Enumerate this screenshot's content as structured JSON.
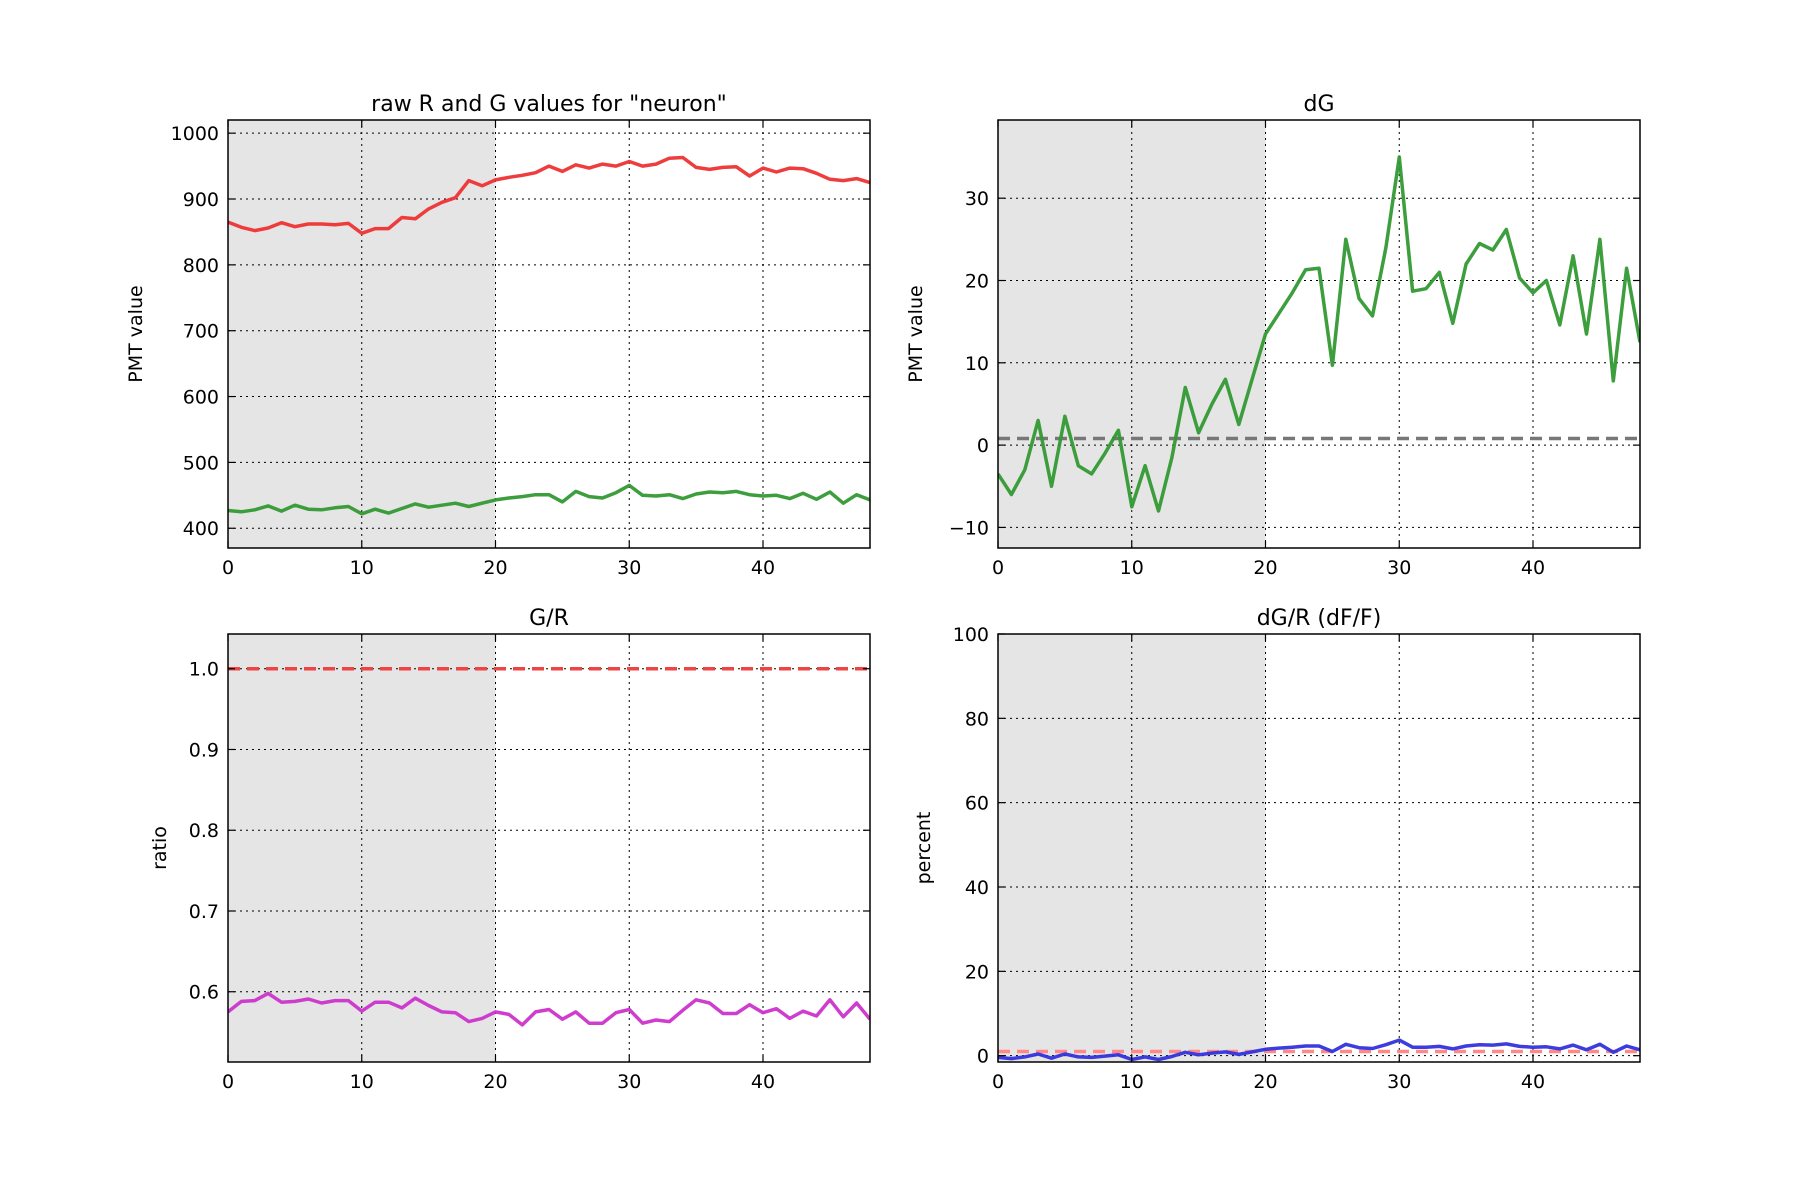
{
  "chart_data": [
    {
      "type": "line",
      "title": "raw R and G values for \"neuron\"",
      "xlabel": "",
      "ylabel": "PMT value",
      "xlim": [
        0,
        48
      ],
      "ylim": [
        370,
        1020
      ],
      "xticks": [
        0,
        10,
        20,
        30,
        40
      ],
      "yticks": [
        400,
        500,
        600,
        700,
        800,
        900,
        1000
      ],
      "grid": true,
      "shaded_x": [
        0,
        20
      ],
      "series": [
        {
          "color": "#ee3333",
          "values": [
            865,
            857,
            852,
            856,
            864,
            858,
            862,
            862,
            861,
            863,
            848,
            855,
            855,
            872,
            870,
            885,
            895,
            902,
            928,
            920,
            929,
            933,
            936,
            940,
            950,
            942,
            952,
            947,
            953,
            950,
            957,
            950,
            953,
            962,
            963,
            948,
            945,
            948,
            949,
            935,
            947,
            941,
            947,
            946,
            939,
            930,
            928,
            931,
            925
          ]
        },
        {
          "color": "#339933",
          "values": [
            427,
            425,
            428,
            434,
            426,
            435,
            429,
            428,
            431,
            433,
            422,
            429,
            423,
            430,
            437,
            432,
            435,
            438,
            433,
            438,
            443,
            446,
            448,
            451,
            451,
            440,
            456,
            448,
            446,
            454,
            465,
            450,
            449,
            451,
            445,
            452,
            455,
            454,
            456,
            451,
            449,
            450,
            445,
            453,
            444,
            455,
            438,
            451,
            443
          ]
        }
      ]
    },
    {
      "type": "line",
      "title": "dG",
      "xlabel": "",
      "ylabel": "PMT value",
      "xlim": [
        0,
        48
      ],
      "ylim": [
        -12.5,
        39.5
      ],
      "xticks": [
        0,
        10,
        20,
        30,
        40
      ],
      "yticks": [
        -10,
        0,
        10,
        20,
        30
      ],
      "ytick_labels": [
        "−10",
        "0",
        "10",
        "20",
        "30"
      ],
      "grid": true,
      "shaded_x": [
        0,
        20
      ],
      "reference_line": {
        "y": 0.8,
        "color": "#777777"
      },
      "series": [
        {
          "color": "#339933",
          "values": [
            -3.5,
            -6,
            -3,
            3,
            -5,
            3.5,
            -2.5,
            -3.5,
            -1,
            1.8,
            -7.5,
            -2.5,
            -8,
            -1.5,
            7,
            1.5,
            5,
            8,
            2.5,
            8,
            13.5,
            16,
            18.5,
            21.3,
            21.5,
            9.7,
            25,
            17.8,
            15.7,
            24,
            35,
            18.7,
            19,
            21,
            14.8,
            22,
            24.5,
            23.7,
            26.2,
            20.3,
            18.5,
            20,
            14.6,
            23,
            13.5,
            25,
            7.8,
            21.5,
            12.5
          ]
        }
      ]
    },
    {
      "type": "line",
      "title": "G/R",
      "xlabel": "",
      "ylabel": "ratio",
      "xlim": [
        0,
        48
      ],
      "ylim": [
        0.513,
        1.043
      ],
      "xticks": [
        0,
        10,
        20,
        30,
        40
      ],
      "yticks": [
        0.6,
        0.7,
        0.8,
        0.9,
        1.0
      ],
      "ytick_labels": [
        "0.6",
        "0.7",
        "0.8",
        "0.9",
        "1.0"
      ],
      "grid": true,
      "shaded_x": [
        0,
        20
      ],
      "reference_line": {
        "y": 1.0,
        "color": "#ee4444"
      },
      "series": [
        {
          "color": "#cc33cc",
          "values": [
            0.575,
            0.588,
            0.589,
            0.598,
            0.587,
            0.588,
            0.591,
            0.586,
            0.589,
            0.589,
            0.576,
            0.587,
            0.587,
            0.58,
            0.592,
            0.583,
            0.575,
            0.574,
            0.563,
            0.567,
            0.575,
            0.572,
            0.559,
            0.575,
            0.578,
            0.566,
            0.575,
            0.561,
            0.561,
            0.574,
            0.578,
            0.561,
            0.565,
            0.563,
            0.577,
            0.59,
            0.586,
            0.573,
            0.573,
            0.584,
            0.574,
            0.579,
            0.567,
            0.576,
            0.57,
            0.59,
            0.569,
            0.586,
            0.566
          ]
        }
      ]
    },
    {
      "type": "line",
      "title": "dG/R (dF/F)",
      "xlabel": "",
      "ylabel": "percent",
      "xlim": [
        0,
        48
      ],
      "ylim": [
        -1.5,
        100
      ],
      "xticks": [
        0,
        10,
        20,
        30,
        40
      ],
      "yticks": [
        0,
        20,
        40,
        60,
        80,
        100
      ],
      "grid": true,
      "shaded_x": [
        0,
        20
      ],
      "reference_line": {
        "y": 1,
        "color": "#ff8888"
      },
      "series": [
        {
          "color": "#3333dd",
          "values": [
            -0.4,
            -0.7,
            -0.3,
            0.4,
            -0.6,
            0.4,
            -0.3,
            -0.4,
            -0.1,
            0.2,
            -0.9,
            -0.3,
            -0.9,
            -0.2,
            0.8,
            0.2,
            0.6,
            0.9,
            0.3,
            0.9,
            1.5,
            1.8,
            2.0,
            2.3,
            2.3,
            1.0,
            2.7,
            1.9,
            1.7,
            2.6,
            3.7,
            2.0,
            2.0,
            2.2,
            1.6,
            2.3,
            2.6,
            2.5,
            2.8,
            2.2,
            2.0,
            2.1,
            1.6,
            2.5,
            1.4,
            2.7,
            0.8,
            2.3,
            1.4
          ]
        }
      ]
    }
  ]
}
